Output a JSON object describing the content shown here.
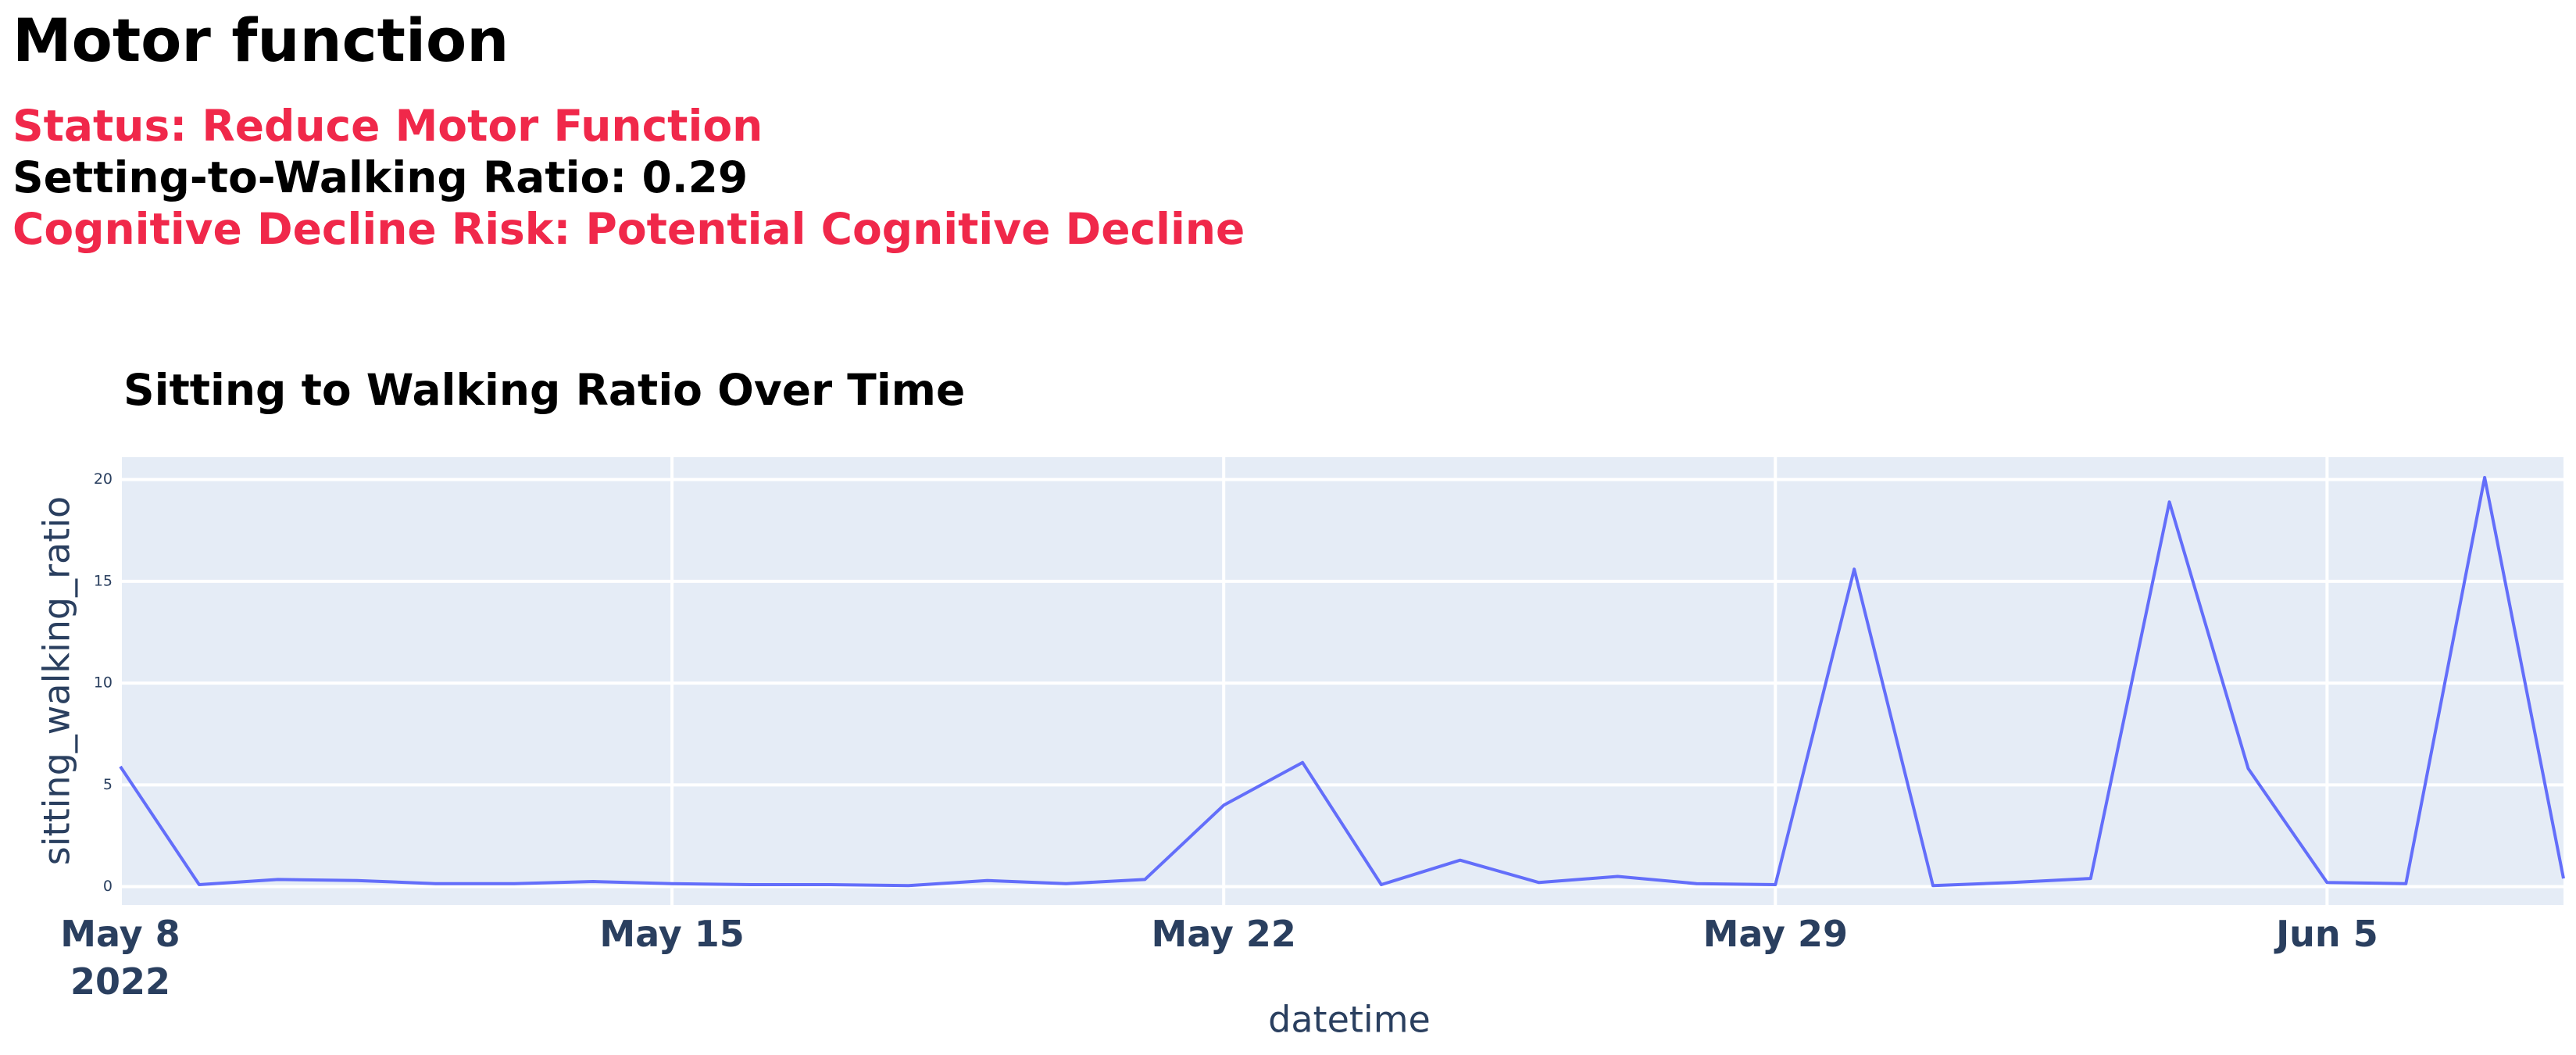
{
  "header": {
    "title": "Motor function",
    "lines": [
      {
        "text": "Status: Reduce Motor Function",
        "color": "#f0284a"
      },
      {
        "text": "Setting-to-Walking Ratio: 0.29",
        "color": "#000000"
      },
      {
        "text": "Cognitive Decline Risk: Potential Cognitive Decline",
        "color": "#f0284a"
      }
    ]
  },
  "chart_data": {
    "type": "line",
    "title": "Sitting to Walking Ratio Over Time",
    "x_label": "datetime",
    "y_label": "sitting_walking_ratio",
    "x": [
      "2022-05-08",
      "2022-05-09",
      "2022-05-10",
      "2022-05-11",
      "2022-05-12",
      "2022-05-13",
      "2022-05-14",
      "2022-05-15",
      "2022-05-16",
      "2022-05-17",
      "2022-05-18",
      "2022-05-19",
      "2022-05-20",
      "2022-05-21",
      "2022-05-22",
      "2022-05-23",
      "2022-05-24",
      "2022-05-25",
      "2022-05-26",
      "2022-05-27",
      "2022-05-28",
      "2022-05-29",
      "2022-05-30",
      "2022-05-31",
      "2022-06-01",
      "2022-06-02",
      "2022-06-03",
      "2022-06-04",
      "2022-06-05",
      "2022-06-06",
      "2022-06-07",
      "2022-06-08"
    ],
    "series": [
      {
        "name": "sitting_walking_ratio",
        "color": "#636efa",
        "values": [
          5.9,
          0.1,
          0.35,
          0.3,
          0.15,
          0.15,
          0.25,
          0.15,
          0.1,
          0.1,
          0.05,
          0.3,
          0.15,
          0.35,
          4.0,
          6.1,
          0.1,
          1.3,
          0.2,
          0.5,
          0.15,
          0.1,
          15.6,
          0.05,
          0.2,
          0.4,
          18.9,
          5.8,
          0.2,
          0.15,
          20.1,
          0.4
        ]
      }
    ],
    "xlim": [
      "2022-05-08",
      "2022-06-08"
    ],
    "xticks": [
      {
        "value": "2022-05-08",
        "label": "May 8\n2022"
      },
      {
        "value": "2022-05-15",
        "label": "May 15"
      },
      {
        "value": "2022-05-22",
        "label": "May 22"
      },
      {
        "value": "2022-05-29",
        "label": "May 29"
      },
      {
        "value": "2022-06-05",
        "label": "Jun 5"
      }
    ],
    "ylim": [
      -0.9,
      21.1
    ],
    "yticks": [
      0,
      5,
      10,
      15,
      20
    ],
    "grid": true,
    "background": "#e5ecf6"
  }
}
